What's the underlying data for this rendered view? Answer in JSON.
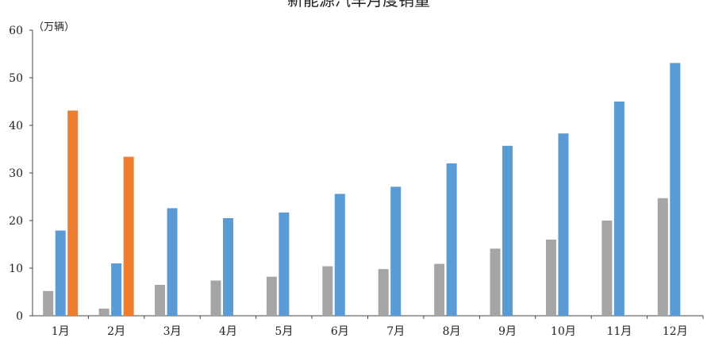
{
  "chart_data": {
    "type": "bar",
    "title": "新能源汽车月度销量",
    "ylabel": "",
    "unit_label": "（万辆）",
    "xlabel": "",
    "ylim": [
      0,
      60
    ],
    "yticks": [
      0,
      10,
      20,
      30,
      40,
      50,
      60
    ],
    "grid": false,
    "categories": [
      "1月",
      "2月",
      "3月",
      "4月",
      "5月",
      "6月",
      "7月",
      "8月",
      "9月",
      "10月",
      "11月",
      "12月"
    ],
    "series": [
      {
        "color": "#a5a5a5",
        "values": [
          5.2,
          1.5,
          6.5,
          7.4,
          8.2,
          10.4,
          9.8,
          10.9,
          14.1,
          16.0,
          20.0,
          24.7
        ]
      },
      {
        "color": "#5b9bd5",
        "values": [
          17.9,
          11.0,
          22.6,
          20.5,
          21.7,
          25.6,
          27.1,
          32.0,
          35.7,
          38.3,
          45.0,
          53.1
        ]
      },
      {
        "color": "#ed7d31",
        "values": [
          43.1,
          33.4,
          null,
          null,
          null,
          null,
          null,
          null,
          null,
          null,
          null,
          null
        ]
      }
    ]
  }
}
